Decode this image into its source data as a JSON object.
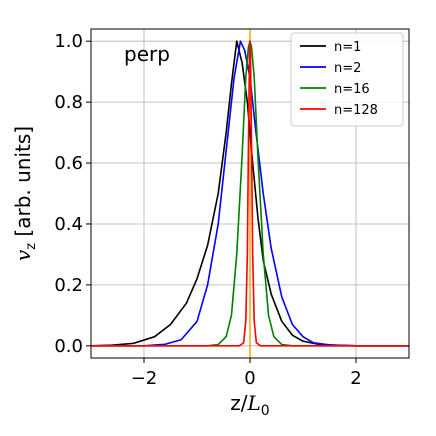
{
  "chart_data": {
    "type": "line",
    "annotation": "perp",
    "xlabel_main": "z/",
    "xlabel_math": "L",
    "xlabel_sub": "0",
    "ylabel_math": "v",
    "ylabel_sub": "z",
    "ylabel_rest": " [arb. units]",
    "xlim": [
      -3,
      3
    ],
    "ylim": [
      -0.04,
      1.04
    ],
    "xticks": [
      -2,
      0,
      2
    ],
    "xtick_labels": [
      "−2",
      "0",
      "2"
    ],
    "yticks": [
      0.0,
      0.2,
      0.4,
      0.6,
      0.8,
      1.0
    ],
    "ytick_labels": [
      "0.0",
      "0.2",
      "0.4",
      "0.6",
      "0.8",
      "1.0"
    ],
    "grid": true,
    "legend_position": "top-right",
    "vertical_marker_x": 0,
    "colors": {
      "n1": "#000000",
      "n2": "#0000ff",
      "n16": "#008000",
      "n128": "#ff0000",
      "marker": "#ffa500"
    },
    "series": [
      {
        "name": "n=1",
        "color": "#000000",
        "x": [
          -3.0,
          -2.6,
          -2.2,
          -1.8,
          -1.5,
          -1.2,
          -1.0,
          -0.8,
          -0.6,
          -0.45,
          -0.35,
          -0.25,
          -0.15,
          -0.05,
          0.05,
          0.15,
          0.25,
          0.4,
          0.6,
          0.8,
          1.0,
          1.3,
          1.6,
          2.0,
          2.5,
          3.0
        ],
        "y": [
          0.0,
          0.002,
          0.008,
          0.03,
          0.07,
          0.14,
          0.22,
          0.33,
          0.5,
          0.7,
          0.86,
          1.0,
          0.93,
          0.8,
          0.6,
          0.42,
          0.28,
          0.17,
          0.08,
          0.035,
          0.015,
          0.005,
          0.002,
          0.0,
          0.0,
          0.0
        ]
      },
      {
        "name": "n=2",
        "color": "#0000ff",
        "x": [
          -3.0,
          -2.0,
          -1.6,
          -1.3,
          -1.0,
          -0.8,
          -0.6,
          -0.4,
          -0.3,
          -0.18,
          -0.1,
          0.0,
          0.1,
          0.25,
          0.4,
          0.6,
          0.8,
          1.0,
          1.2,
          1.5,
          2.0,
          3.0
        ],
        "y": [
          0.0,
          0.0,
          0.005,
          0.02,
          0.08,
          0.2,
          0.4,
          0.72,
          0.88,
          1.0,
          0.97,
          0.88,
          0.72,
          0.5,
          0.32,
          0.16,
          0.07,
          0.03,
          0.01,
          0.003,
          0.0,
          0.0
        ]
      },
      {
        "name": "n=16",
        "color": "#008000",
        "x": [
          -3.0,
          -0.8,
          -0.6,
          -0.45,
          -0.35,
          -0.25,
          -0.15,
          -0.08,
          -0.03,
          0.0,
          0.03,
          0.08,
          0.15,
          0.25,
          0.35,
          0.45,
          0.6,
          0.8,
          3.0
        ],
        "y": [
          0.0,
          0.0,
          0.004,
          0.03,
          0.1,
          0.3,
          0.62,
          0.88,
          0.98,
          1.0,
          0.98,
          0.88,
          0.62,
          0.3,
          0.1,
          0.03,
          0.004,
          0.0,
          0.0
        ]
      },
      {
        "name": "n=128",
        "color": "#ff0000",
        "x": [
          -3.0,
          -0.2,
          -0.12,
          -0.08,
          -0.05,
          -0.03,
          -0.01,
          0.0,
          0.01,
          0.03,
          0.05,
          0.08,
          0.12,
          0.2,
          3.0
        ],
        "y": [
          0.0,
          0.0,
          0.01,
          0.08,
          0.3,
          0.65,
          0.95,
          1.0,
          0.95,
          0.65,
          0.3,
          0.08,
          0.01,
          0.0,
          0.0
        ]
      }
    ]
  }
}
